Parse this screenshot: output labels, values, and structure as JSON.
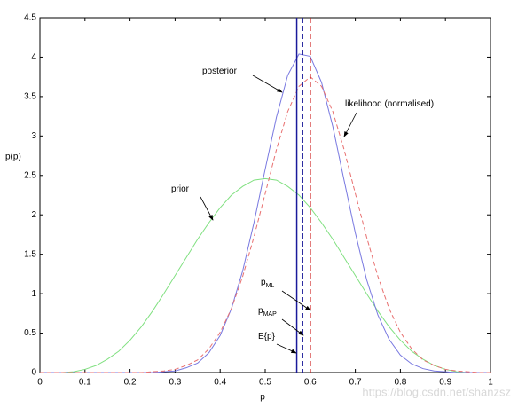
{
  "chart_data": {
    "type": "line",
    "xlabel": "p",
    "ylabel": "p(p)",
    "xlim": [
      0,
      1
    ],
    "xticks": [
      0,
      0.1,
      0.2,
      0.3,
      0.4,
      0.5,
      0.6,
      0.7,
      0.8,
      0.9,
      1
    ],
    "ylim": [
      0,
      4.5
    ],
    "yticks": [
      0,
      0.5,
      1,
      1.5,
      2,
      2.5,
      3,
      3.5,
      4,
      4.5
    ],
    "x": [
      0,
      0.025,
      0.05,
      0.075,
      0.1,
      0.125,
      0.15,
      0.175,
      0.2,
      0.225,
      0.25,
      0.275,
      0.3,
      0.325,
      0.35,
      0.375,
      0.4,
      0.425,
      0.45,
      0.475,
      0.5,
      0.525,
      0.55,
      0.575,
      0.6,
      0.625,
      0.65,
      0.675,
      0.7,
      0.725,
      0.75,
      0.775,
      0.8,
      0.825,
      0.85,
      0.875,
      0.9,
      0.925,
      0.95,
      0.975,
      1
    ],
    "series": [
      {
        "color": "#80e080",
        "dashed": false,
        "values": [
          0,
          0,
          0,
          0.01,
          0.04,
          0.09,
          0.17,
          0.27,
          0.41,
          0.58,
          0.78,
          1.0,
          1.23,
          1.46,
          1.69,
          1.9,
          2.09,
          2.25,
          2.36,
          2.44,
          2.46,
          2.44,
          2.36,
          2.25,
          2.09,
          1.9,
          1.69,
          1.46,
          1.23,
          1.0,
          0.78,
          0.58,
          0.41,
          0.27,
          0.17,
          0.09,
          0.04,
          0.01,
          0,
          0,
          0
        ]
      },
      {
        "color": "#7878e0",
        "dashed": false,
        "values": [
          0,
          0,
          0,
          0,
          0,
          0,
          0,
          0,
          0,
          0,
          0,
          0.01,
          0.02,
          0.06,
          0.12,
          0.25,
          0.47,
          0.81,
          1.29,
          1.9,
          2.58,
          3.24,
          3.77,
          4.04,
          4.01,
          3.68,
          3.12,
          2.44,
          1.77,
          1.18,
          0.73,
          0.42,
          0.22,
          0.11,
          0.05,
          0.02,
          0.01,
          0,
          0,
          0,
          0
        ]
      },
      {
        "color": "#e87070",
        "dashed": true,
        "values": [
          0,
          0,
          0,
          0,
          0,
          0,
          0,
          0,
          0,
          0,
          0.01,
          0.02,
          0.04,
          0.09,
          0.16,
          0.3,
          0.51,
          0.81,
          1.22,
          1.72,
          2.27,
          2.83,
          3.31,
          3.63,
          3.75,
          3.63,
          3.31,
          2.83,
          2.27,
          1.72,
          1.22,
          0.81,
          0.51,
          0.3,
          0.16,
          0.09,
          0.04,
          0.02,
          0.01,
          0,
          0
        ]
      }
    ],
    "vlines": [
      {
        "value": 0.57,
        "color": "#1a1a9a",
        "dashed": false
      },
      {
        "value": 0.583,
        "color": "#1a1a9a",
        "dashed": true
      },
      {
        "value": 0.6,
        "color": "#cc1010",
        "dashed": true
      }
    ],
    "annotations": [
      {
        "text": "posterior"
      },
      {
        "text": "likelihood (normalised)"
      },
      {
        "text": "prior"
      },
      {
        "text": "p",
        "sub": "ML"
      },
      {
        "text": "p",
        "sub": "MAP"
      },
      {
        "text": "E{p}"
      }
    ],
    "watermark": "https://blog.csdn.net/shanzsz"
  }
}
